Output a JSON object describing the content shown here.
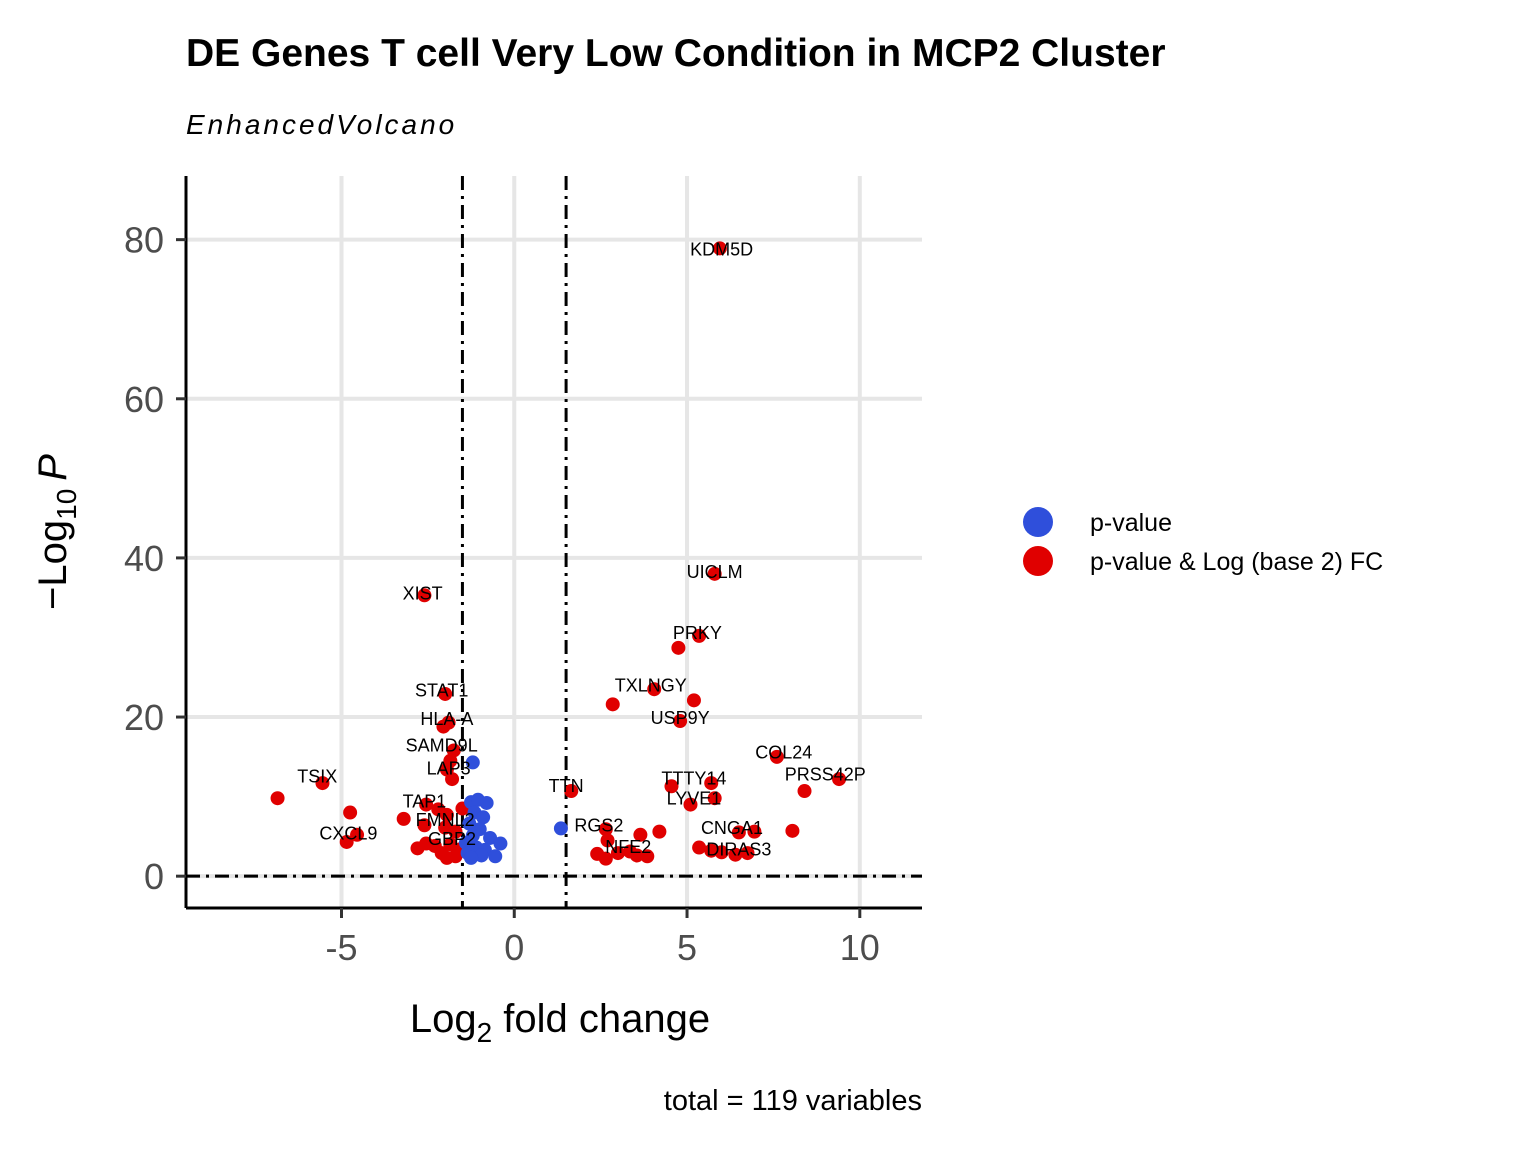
{
  "chart_data": {
    "type": "scatter",
    "title": "DE Genes T cell Very Low Condition in MCP2 Cluster",
    "subtitle": "EnhancedVolcano",
    "xlabel_main": "Log",
    "xlabel_sub": "2",
    "xlabel_rest": " fold change",
    "ylabel_prefix": "−Log",
    "ylabel_sub": "10",
    "ylabel_italic": "P",
    "caption": "total = 119 variables",
    "xlim": [
      -9.5,
      11.8
    ],
    "ylim": [
      -4,
      88
    ],
    "x_ticks": [
      -5,
      0,
      5,
      10
    ],
    "x_tick_labels": [
      "-5",
      "0",
      "5",
      "10"
    ],
    "y_ticks": [
      0,
      20,
      40,
      60,
      80
    ],
    "y_tick_labels": [
      "0",
      "20",
      "40",
      "60",
      "80"
    ],
    "fc_cutoffs": [
      -1.5,
      1.5
    ],
    "p_cutoff_neglog10": 0,
    "colors": {
      "pvalue": "#2f4fdb",
      "both": "#e00000"
    },
    "legend": [
      {
        "key": "pvalue",
        "label": "p-value"
      },
      {
        "key": "both",
        "label": "p-value & Log (base 2) FC"
      }
    ],
    "points": [
      {
        "x": 5.95,
        "y": 78.9,
        "group": "both"
      },
      {
        "x": 5.8,
        "y": 38.0,
        "group": "both"
      },
      {
        "x": -2.6,
        "y": 35.3,
        "group": "both"
      },
      {
        "x": 5.35,
        "y": 30.2,
        "group": "both"
      },
      {
        "x": 4.75,
        "y": 28.7,
        "group": "both"
      },
      {
        "x": 4.05,
        "y": 23.5,
        "group": "both"
      },
      {
        "x": 5.2,
        "y": 22.1,
        "group": "both"
      },
      {
        "x": 2.85,
        "y": 21.6,
        "group": "both"
      },
      {
        "x": -2.0,
        "y": 22.9,
        "group": "both"
      },
      {
        "x": 4.8,
        "y": 19.5,
        "group": "both"
      },
      {
        "x": -1.9,
        "y": 19.3,
        "group": "both"
      },
      {
        "x": -2.05,
        "y": 18.8,
        "group": "both"
      },
      {
        "x": -1.75,
        "y": 15.8,
        "group": "both"
      },
      {
        "x": -1.85,
        "y": 14.5,
        "group": "both"
      },
      {
        "x": -1.95,
        "y": 13.4,
        "group": "both"
      },
      {
        "x": -1.8,
        "y": 12.2,
        "group": "both"
      },
      {
        "x": 7.6,
        "y": 15.0,
        "group": "both"
      },
      {
        "x": 9.4,
        "y": 12.2,
        "group": "both"
      },
      {
        "x": 8.4,
        "y": 10.7,
        "group": "both"
      },
      {
        "x": 5.7,
        "y": 11.7,
        "group": "both"
      },
      {
        "x": 4.55,
        "y": 11.3,
        "group": "both"
      },
      {
        "x": 5.8,
        "y": 9.8,
        "group": "both"
      },
      {
        "x": 5.1,
        "y": 9.0,
        "group": "both"
      },
      {
        "x": 1.65,
        "y": 10.7,
        "group": "both"
      },
      {
        "x": -5.55,
        "y": 11.7,
        "group": "both"
      },
      {
        "x": -6.85,
        "y": 9.8,
        "group": "both"
      },
      {
        "x": -4.75,
        "y": 8.0,
        "group": "both"
      },
      {
        "x": -3.2,
        "y": 7.2,
        "group": "both"
      },
      {
        "x": -2.55,
        "y": 9.0,
        "group": "both"
      },
      {
        "x": -2.2,
        "y": 8.4,
        "group": "both"
      },
      {
        "x": -1.95,
        "y": 7.7,
        "group": "both"
      },
      {
        "x": -1.5,
        "y": 8.5,
        "group": "both"
      },
      {
        "x": -2.6,
        "y": 6.4,
        "group": "both"
      },
      {
        "x": -2.0,
        "y": 6.1,
        "group": "both"
      },
      {
        "x": -1.7,
        "y": 5.6,
        "group": "both"
      },
      {
        "x": -4.55,
        "y": 5.2,
        "group": "both"
      },
      {
        "x": -4.85,
        "y": 4.3,
        "group": "both"
      },
      {
        "x": -2.8,
        "y": 3.5,
        "group": "both"
      },
      {
        "x": -2.55,
        "y": 4.1,
        "group": "both"
      },
      {
        "x": -2.3,
        "y": 3.8,
        "group": "both"
      },
      {
        "x": -2.1,
        "y": 2.9,
        "group": "both"
      },
      {
        "x": -1.85,
        "y": 4.0,
        "group": "both"
      },
      {
        "x": -1.7,
        "y": 2.5,
        "group": "both"
      },
      {
        "x": -1.55,
        "y": 3.4,
        "group": "both"
      },
      {
        "x": -1.95,
        "y": 2.3,
        "group": "both"
      },
      {
        "x": 2.65,
        "y": 5.9,
        "group": "both"
      },
      {
        "x": 2.7,
        "y": 4.5,
        "group": "both"
      },
      {
        "x": 3.65,
        "y": 5.2,
        "group": "both"
      },
      {
        "x": 4.2,
        "y": 5.6,
        "group": "both"
      },
      {
        "x": 2.4,
        "y": 2.8,
        "group": "both"
      },
      {
        "x": 2.65,
        "y": 2.2,
        "group": "both"
      },
      {
        "x": 3.0,
        "y": 2.9,
        "group": "both"
      },
      {
        "x": 3.35,
        "y": 3.1,
        "group": "both"
      },
      {
        "x": 3.55,
        "y": 2.6,
        "group": "both"
      },
      {
        "x": 3.85,
        "y": 2.5,
        "group": "both"
      },
      {
        "x": 6.5,
        "y": 5.5,
        "group": "both"
      },
      {
        "x": 6.95,
        "y": 5.6,
        "group": "both"
      },
      {
        "x": 8.05,
        "y": 5.7,
        "group": "both"
      },
      {
        "x": 5.35,
        "y": 3.6,
        "group": "both"
      },
      {
        "x": 5.7,
        "y": 3.2,
        "group": "both"
      },
      {
        "x": 6.0,
        "y": 3.0,
        "group": "both"
      },
      {
        "x": 6.4,
        "y": 2.7,
        "group": "both"
      },
      {
        "x": 6.75,
        "y": 2.9,
        "group": "both"
      },
      {
        "x": -1.2,
        "y": 14.3,
        "group": "pvalue"
      },
      {
        "x": -1.25,
        "y": 9.3,
        "group": "pvalue"
      },
      {
        "x": -1.05,
        "y": 9.6,
        "group": "pvalue"
      },
      {
        "x": -0.8,
        "y": 9.2,
        "group": "pvalue"
      },
      {
        "x": -1.15,
        "y": 8.0,
        "group": "pvalue"
      },
      {
        "x": -0.9,
        "y": 7.4,
        "group": "pvalue"
      },
      {
        "x": -1.3,
        "y": 6.6,
        "group": "pvalue"
      },
      {
        "x": -1.0,
        "y": 5.9,
        "group": "pvalue"
      },
      {
        "x": -1.2,
        "y": 5.1,
        "group": "pvalue"
      },
      {
        "x": -0.7,
        "y": 4.8,
        "group": "pvalue"
      },
      {
        "x": -1.4,
        "y": 4.2,
        "group": "pvalue"
      },
      {
        "x": -0.4,
        "y": 4.1,
        "group": "pvalue"
      },
      {
        "x": -1.1,
        "y": 3.6,
        "group": "pvalue"
      },
      {
        "x": -0.85,
        "y": 3.3,
        "group": "pvalue"
      },
      {
        "x": -1.35,
        "y": 2.9,
        "group": "pvalue"
      },
      {
        "x": -0.95,
        "y": 2.6,
        "group": "pvalue"
      },
      {
        "x": -0.55,
        "y": 2.5,
        "group": "pvalue"
      },
      {
        "x": -1.25,
        "y": 2.3,
        "group": "pvalue"
      },
      {
        "x": 1.35,
        "y": 6.0,
        "group": "pvalue"
      }
    ],
    "labels": [
      {
        "text": "KDM5D",
        "x": 6.0,
        "y": 78.0
      },
      {
        "text": "UICLM",
        "x": 5.8,
        "y": 37.5
      },
      {
        "text": "XIST",
        "x": -2.65,
        "y": 34.8
      },
      {
        "text": "PRKY",
        "x": 5.3,
        "y": 29.8
      },
      {
        "text": "TXLNGY",
        "x": 3.95,
        "y": 23.2
      },
      {
        "text": "STAT1",
        "x": -2.1,
        "y": 22.6
      },
      {
        "text": "USP9Y",
        "x": 4.8,
        "y": 19.1
      },
      {
        "text": "HLA-A",
        "x": -1.95,
        "y": 19.0
      },
      {
        "text": "SAMD9L",
        "x": -2.1,
        "y": 15.7
      },
      {
        "text": "LAP3",
        "x": -1.9,
        "y": 12.8
      },
      {
        "text": "COL24",
        "x": 7.8,
        "y": 14.8
      },
      {
        "text": "PRSS42P",
        "x": 9.0,
        "y": 12.0
      },
      {
        "text": "TTTY14",
        "x": 5.2,
        "y": 11.5
      },
      {
        "text": "LYVE1",
        "x": 5.2,
        "y": 9.0
      },
      {
        "text": "TTN",
        "x": 1.5,
        "y": 10.6
      },
      {
        "text": "TSIX",
        "x": -5.7,
        "y": 11.8
      },
      {
        "text": "TAP1",
        "x": -2.6,
        "y": 8.6
      },
      {
        "text": "FMNL2",
        "x": -2.0,
        "y": 6.3
      },
      {
        "text": "CXCL9",
        "x": -4.8,
        "y": 4.6
      },
      {
        "text": "GBP2",
        "x": -1.8,
        "y": 3.9
      },
      {
        "text": "RGS2",
        "x": 2.45,
        "y": 5.6
      },
      {
        "text": "NFE2",
        "x": 3.3,
        "y": 2.9
      },
      {
        "text": "CNGA1",
        "x": 6.3,
        "y": 5.3
      },
      {
        "text": "DIRAS3",
        "x": 6.5,
        "y": 2.6
      }
    ]
  }
}
